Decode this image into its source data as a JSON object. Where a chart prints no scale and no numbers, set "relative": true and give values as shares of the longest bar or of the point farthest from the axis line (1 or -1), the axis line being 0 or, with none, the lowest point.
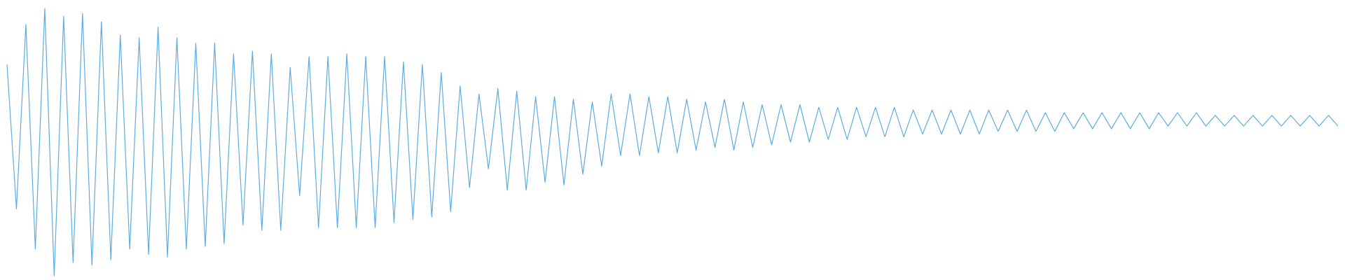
{
  "chart_data": {
    "type": "line",
    "relative": true,
    "categories": [
      null,
      null,
      null,
      null,
      null,
      null,
      null,
      null,
      null,
      null,
      null,
      null,
      null,
      null,
      null,
      null,
      null,
      null,
      null,
      null,
      null,
      null,
      null,
      null,
      null,
      null,
      null,
      null,
      null,
      null,
      null,
      null,
      null,
      null,
      null,
      null,
      null,
      null,
      null,
      null,
      null,
      null,
      null,
      null,
      null,
      null,
      null,
      null,
      null,
      null,
      null,
      null,
      null,
      null,
      null,
      null,
      null,
      null,
      null,
      null,
      null,
      null,
      null,
      null,
      null,
      null,
      null,
      null,
      null,
      null,
      null,
      null,
      null,
      null,
      null,
      null,
      null,
      null,
      null,
      null,
      null,
      null,
      null,
      null,
      null,
      null,
      null,
      null,
      null,
      null,
      null,
      null,
      null,
      null,
      null,
      null,
      null,
      null,
      null,
      null,
      null,
      null,
      null,
      null,
      null,
      null,
      null,
      null,
      null,
      null,
      null,
      null,
      null,
      null,
      null,
      null,
      null,
      null,
      null,
      null,
      null,
      null,
      null,
      null,
      null,
      null,
      null,
      null,
      null,
      null,
      null,
      null,
      null,
      null,
      null,
      null,
      null,
      null,
      null,
      null,
      null,
      null
    ],
    "series": [
      {
        "color": "#5dade2",
        "values": [
          0.79,
          0.25,
          0.94,
          0.1,
          1,
          0,
          0.97,
          0.05,
          0.98,
          0.04,
          0.95,
          0.06,
          0.9,
          0.1,
          0.89,
          0.08,
          0.93,
          0.07,
          0.89,
          0.1,
          0.87,
          0.11,
          0.87,
          0.12,
          0.83,
          0.19,
          0.84,
          0.17,
          0.83,
          0.17,
          0.78,
          0.3,
          0.82,
          0.18,
          0.82,
          0.18,
          0.83,
          0.18,
          0.82,
          0.18,
          0.82,
          0.2,
          0.8,
          0.21,
          0.79,
          0.22,
          0.76,
          0.24,
          0.71,
          0.33,
          0.68,
          0.4,
          0.7,
          0.32,
          0.69,
          0.32,
          0.67,
          0.35,
          0.67,
          0.34,
          0.66,
          0.38,
          0.65,
          0.41,
          0.68,
          0.45,
          0.68,
          0.45,
          0.67,
          0.46,
          0.67,
          0.46,
          0.66,
          0.47,
          0.65,
          0.48,
          0.66,
          0.47,
          0.65,
          0.48,
          0.64,
          0.49,
          0.64,
          0.5,
          0.64,
          0.5,
          0.63,
          0.51,
          0.63,
          0.51,
          0.63,
          0.52,
          0.63,
          0.52,
          0.63,
          0.52,
          0.62,
          0.53,
          0.62,
          0.53,
          0.62,
          0.53,
          0.62,
          0.53,
          0.62,
          0.54,
          0.62,
          0.54,
          0.62,
          0.54,
          0.61,
          0.54,
          0.61,
          0.55,
          0.61,
          0.55,
          0.61,
          0.55,
          0.61,
          0.55,
          0.61,
          0.55,
          0.61,
          0.56,
          0.61,
          0.56,
          0.61,
          0.56,
          0.6,
          0.56,
          0.6,
          0.56,
          0.6,
          0.56,
          0.6,
          0.56,
          0.6,
          0.56,
          0.6,
          0.56,
          0.6,
          0.56
        ]
      }
    ]
  }
}
